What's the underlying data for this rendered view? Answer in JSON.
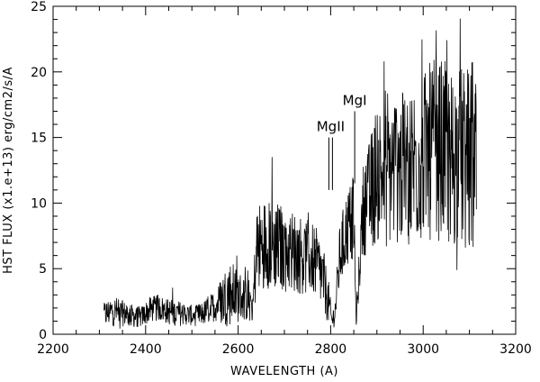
{
  "chart_data": {
    "type": "line",
    "title": "",
    "xlabel": "WAVELENGTH (A)",
    "ylabel": "HST FLUX (x1.e+13) erg/cm2/s/A",
    "xlim": [
      2200,
      3200
    ],
    "ylim": [
      0,
      25
    ],
    "xticks": [
      2200,
      2400,
      2600,
      2800,
      3000,
      3200
    ],
    "yticks": [
      0,
      5,
      10,
      15,
      20,
      25
    ],
    "xticks_minor_step": 50,
    "yticks_minor_step": 1,
    "grid": false,
    "series": [
      {
        "name": "",
        "x": [
          2310,
          2330,
          2350,
          2370,
          2390,
          2410,
          2430,
          2450,
          2470,
          2490,
          2510,
          2530,
          2550,
          2565,
          2580,
          2595,
          2610,
          2625,
          2632,
          2640,
          2660,
          2680,
          2700,
          2720,
          2740,
          2760,
          2775,
          2785,
          2795,
          2803,
          2810,
          2820,
          2835,
          2850,
          2855,
          2870,
          2885,
          2900,
          2920,
          2940,
          2960,
          2980,
          3000,
          3020,
          3040,
          3060,
          3080,
          3100,
          3115
        ],
        "y": [
          1.5,
          1.8,
          1.6,
          1.4,
          1.3,
          1.9,
          2.0,
          1.7,
          1.6,
          1.5,
          1.4,
          1.7,
          2.2,
          2.6,
          3.2,
          3.0,
          2.8,
          2.5,
          2.2,
          6.5,
          7.0,
          6.8,
          6.5,
          6.3,
          6.0,
          5.8,
          5.0,
          4.0,
          2.5,
          1.0,
          1.8,
          6.0,
          8.0,
          9.0,
          1.0,
          9.5,
          10.5,
          12.5,
          12.0,
          12.8,
          12.5,
          13.0,
          13.5,
          14.0,
          14.0,
          13.5,
          13.5,
          13.0,
          12.5
        ],
        "noise": [
          1.0,
          1.2,
          1.0,
          0.9,
          0.8,
          1.0,
          1.0,
          1.0,
          1.0,
          0.8,
          0.8,
          1.0,
          1.2,
          2.0,
          2.6,
          2.2,
          1.8,
          1.6,
          1.5,
          3.5,
          3.5,
          3.5,
          3.3,
          3.2,
          3.0,
          2.8,
          2.8,
          2.4,
          1.8,
          0.6,
          1.2,
          2.5,
          3.0,
          3.2,
          0.5,
          3.5,
          4.5,
          5.5,
          5.5,
          6.0,
          6.0,
          6.5,
          6.5,
          7.0,
          7.0,
          7.0,
          7.0,
          7.5,
          7.0
        ]
      }
    ],
    "annotations": [
      {
        "text": "MgII",
        "x": 2800,
        "y_bottom": 11.0,
        "y_top": 15.0
      },
      {
        "text": "MgI",
        "x": 2852,
        "y_bottom": 11.5,
        "y_top": 17.0
      }
    ]
  }
}
